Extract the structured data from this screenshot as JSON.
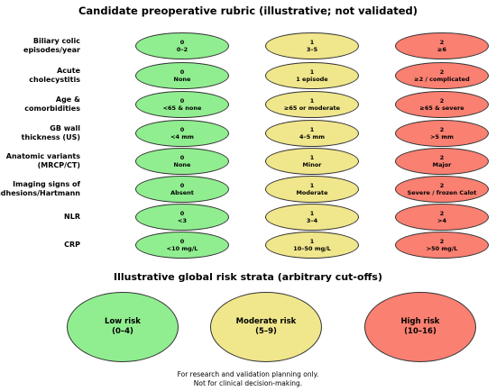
{
  "title": "Candidate preoperative rubric (illustrative; not validated)",
  "rows": [
    {
      "label1": "Biliary colic",
      "label2": "episodes/year",
      "cells": [
        [
          "0",
          "0–2"
        ],
        [
          "1",
          "3–5"
        ],
        [
          "2",
          "≥6"
        ]
      ]
    },
    {
      "label1": "Acute",
      "label2": "cholecystitis",
      "cells": [
        [
          "0",
          "None"
        ],
        [
          "1",
          "1 episode"
        ],
        [
          "2",
          "≥2 / complicated"
        ]
      ]
    },
    {
      "label1": "Age &",
      "label2": "comorbidities",
      "cells": [
        [
          "0",
          "<65 & none"
        ],
        [
          "1",
          "≥65 or moderate"
        ],
        [
          "2",
          "≥65 & severe"
        ]
      ]
    },
    {
      "label1": "GB wall",
      "label2": "thickness (US)",
      "cells": [
        [
          "0",
          "<4 mm"
        ],
        [
          "1",
          "4–5 mm"
        ],
        [
          "2",
          ">5 mm"
        ]
      ]
    },
    {
      "label1": "Anatomic variants",
      "label2": "(MRCP/CT)",
      "cells": [
        [
          "0",
          "None"
        ],
        [
          "1",
          "Minor"
        ],
        [
          "2",
          "Major"
        ]
      ]
    },
    {
      "label1": "Imaging signs of",
      "label2": "adhesions/Hartmann",
      "cells": [
        [
          "0",
          "Absent"
        ],
        [
          "1",
          "Moderate"
        ],
        [
          "2",
          "Severe / frozen Calot"
        ]
      ]
    },
    {
      "label1": "NLR",
      "label2": "",
      "cells": [
        [
          "0",
          "<3"
        ],
        [
          "1",
          "3–4"
        ],
        [
          "2",
          ">4"
        ]
      ]
    },
    {
      "label1": "CRP",
      "label2": "",
      "cells": [
        [
          "0",
          "<10 mg/L"
        ],
        [
          "1",
          "10–50 mg/L"
        ],
        [
          "2",
          ">50 mg/L"
        ]
      ]
    }
  ],
  "strata_title": "Illustrative global risk strata (arbitrary cut-offs)",
  "strata": [
    {
      "label": "Low risk",
      "range": "(0–4)"
    },
    {
      "label": "Moderate risk",
      "range": "(5–9)"
    },
    {
      "label": "High risk",
      "range": "(10–16)"
    }
  ],
  "footer": {
    "line1": "For research and validation planning only.",
    "line2": "Not for clinical decision-making."
  },
  "colors": {
    "low": "#90ee90",
    "moderate": "#f0e68c",
    "high": "#fa8072"
  }
}
